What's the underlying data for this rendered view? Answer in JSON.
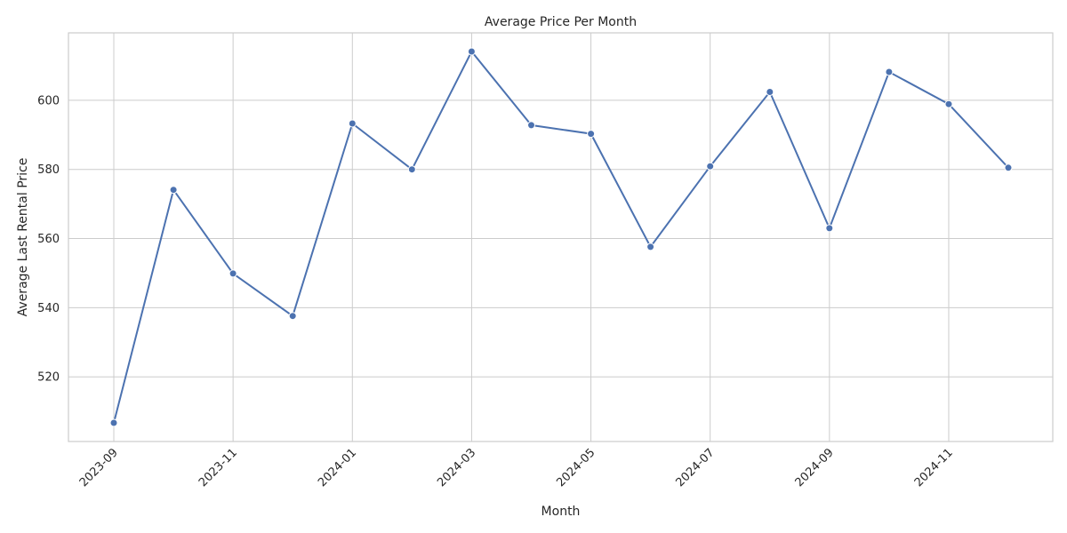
{
  "chart_data": {
    "type": "line",
    "title": "Average Price Per Month",
    "xlabel": "Month",
    "ylabel": "Average Last Rental Price",
    "x": [
      "2023-09",
      "2023-10",
      "2023-11",
      "2023-12",
      "2024-01",
      "2024-02",
      "2024-03",
      "2024-04",
      "2024-05",
      "2024-06",
      "2024-07",
      "2024-08",
      "2024-09",
      "2024-10",
      "2024-11",
      "2024-12"
    ],
    "values": [
      506.7,
      574.1,
      549.9,
      537.6,
      593.3,
      580.0,
      614.1,
      592.8,
      590.3,
      557.6,
      580.9,
      602.4,
      563.0,
      608.2,
      598.9,
      580.5
    ],
    "xticks": [
      "2023-09",
      "2023-11",
      "2024-01",
      "2024-03",
      "2024-05",
      "2024-07",
      "2024-09",
      "2024-11"
    ],
    "yticks": [
      520,
      540,
      560,
      580,
      600
    ],
    "ylim": [
      501.3,
      619.5
    ],
    "grid": true,
    "color": "#4c72b0"
  }
}
